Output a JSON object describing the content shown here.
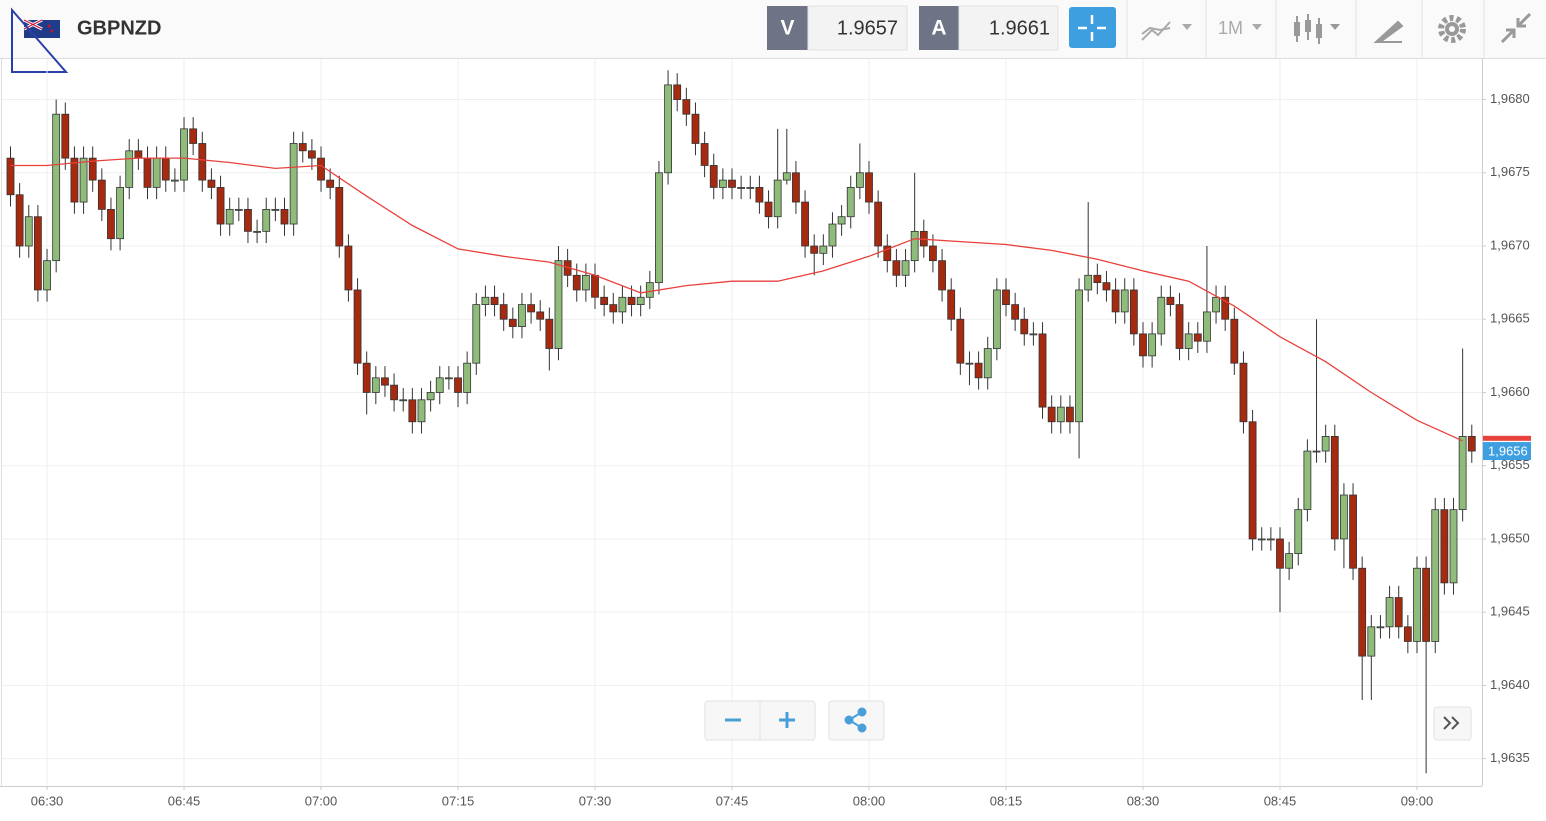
{
  "header": {
    "symbol": "GBPNZD",
    "bid_label": "V",
    "bid": "1.9657",
    "ask_label": "A",
    "ask": "1.9661",
    "timeframe": "1M"
  },
  "chart_data": {
    "type": "candlestick",
    "x": [
      "06:26",
      "06:27",
      "06:28",
      "06:29",
      "06:30",
      "06:31",
      "06:32",
      "06:33",
      "06:34",
      "06:35",
      "06:36",
      "06:37",
      "06:38",
      "06:39",
      "06:40",
      "06:41",
      "06:42",
      "06:43",
      "06:44",
      "06:45",
      "06:46",
      "06:47",
      "06:48",
      "06:49",
      "06:50",
      "06:51",
      "06:52",
      "06:53",
      "06:54",
      "06:55",
      "06:56",
      "06:57",
      "06:58",
      "06:59",
      "07:00",
      "07:01",
      "07:02",
      "07:03",
      "07:04",
      "07:05",
      "07:06",
      "07:07",
      "07:08",
      "07:09",
      "07:10",
      "07:11",
      "07:12",
      "07:13",
      "07:14",
      "07:15",
      "07:16",
      "07:17",
      "07:18",
      "07:19",
      "07:20",
      "07:21",
      "07:22",
      "07:23",
      "07:24",
      "07:25",
      "07:26",
      "07:27",
      "07:28",
      "07:29",
      "07:30",
      "07:31",
      "07:32",
      "07:33",
      "07:34",
      "07:35",
      "07:36",
      "07:37",
      "07:38",
      "07:39",
      "07:40",
      "07:41",
      "07:42",
      "07:43",
      "07:44",
      "07:45",
      "07:46",
      "07:47",
      "07:48",
      "07:49",
      "07:50",
      "07:51",
      "07:52",
      "07:53",
      "07:54",
      "07:55",
      "07:56",
      "07:57",
      "07:58",
      "07:59",
      "08:00",
      "08:01",
      "08:02",
      "08:03",
      "08:04",
      "08:05",
      "08:06",
      "08:07",
      "08:08",
      "08:09",
      "08:10",
      "08:11",
      "08:12",
      "08:13",
      "08:14",
      "08:15",
      "08:16",
      "08:17",
      "08:18",
      "08:19",
      "08:20",
      "08:21",
      "08:22",
      "08:23",
      "08:24",
      "08:25",
      "08:26",
      "08:27",
      "08:28",
      "08:29",
      "08:30",
      "08:31",
      "08:32",
      "08:33",
      "08:34",
      "08:35",
      "08:36",
      "08:37",
      "08:38",
      "08:39",
      "08:40",
      "08:41",
      "08:42",
      "08:43",
      "08:44",
      "08:45",
      "08:46",
      "08:47",
      "08:48",
      "08:49",
      "08:50",
      "08:51",
      "08:52",
      "08:53",
      "08:54",
      "08:55",
      "08:56",
      "08:57",
      "08:58",
      "08:59",
      "09:00",
      "09:01",
      "09:02",
      "09:03",
      "09:04",
      "09:05",
      "09:06"
    ],
    "open": [
      1.9676,
      1.96735,
      1.967,
      1.9672,
      1.9667,
      1.9669,
      1.9679,
      1.9676,
      1.9673,
      1.9676,
      1.96745,
      1.96725,
      1.96705,
      1.9674,
      1.96765,
      1.9676,
      1.9674,
      1.9676,
      1.96745,
      1.96745,
      1.9678,
      1.9677,
      1.96745,
      1.9674,
      1.96715,
      1.96725,
      1.96725,
      1.9671,
      1.9671,
      1.96725,
      1.96725,
      1.96715,
      1.9677,
      1.96765,
      1.9676,
      1.96745,
      1.9674,
      1.967,
      1.9667,
      1.9662,
      1.966,
      1.9661,
      1.96605,
      1.96595,
      1.96595,
      1.9658,
      1.96595,
      1.966,
      1.9661,
      1.9661,
      1.966,
      1.9662,
      1.9666,
      1.96665,
      1.9666,
      1.9665,
      1.96645,
      1.9666,
      1.96655,
      1.9665,
      1.9663,
      1.9669,
      1.9668,
      1.9667,
      1.9668,
      1.96665,
      1.9666,
      1.96655,
      1.96665,
      1.9666,
      1.96665,
      1.96675,
      1.9675,
      1.9681,
      1.968,
      1.9679,
      1.9677,
      1.96755,
      1.9674,
      1.96745,
      1.9674,
      1.9674,
      1.9674,
      1.9673,
      1.9672,
      1.96745,
      1.9675,
      1.9673,
      1.967,
      1.96695,
      1.967,
      1.96715,
      1.9672,
      1.9674,
      1.9675,
      1.9673,
      1.967,
      1.9669,
      1.9668,
      1.9669,
      1.9671,
      1.967,
      1.9669,
      1.9667,
      1.9665,
      1.9662,
      1.9662,
      1.9661,
      1.9663,
      1.9667,
      1.9666,
      1.9665,
      1.9664,
      1.9664,
      1.9659,
      1.9658,
      1.9659,
      1.9658,
      1.9667,
      1.9668,
      1.96675,
      1.9667,
      1.96655,
      1.9667,
      1.9664,
      1.96625,
      1.9664,
      1.96665,
      1.9666,
      1.9663,
      1.9664,
      1.96635,
      1.96655,
      1.96665,
      1.9665,
      1.9662,
      1.9658,
      1.965,
      1.965,
      1.965,
      1.9648,
      1.9649,
      1.9652,
      1.9656,
      1.9656,
      1.9657,
      1.965,
      1.9653,
      1.9648,
      1.9642,
      1.9644,
      1.9644,
      1.9646,
      1.9644,
      1.9643,
      1.9648,
      1.9643,
      1.9652,
      1.9647,
      1.9652,
      1.9657
    ],
    "high": [
      1.96768,
      1.96743,
      1.96728,
      1.96728,
      1.96698,
      1.968,
      1.96798,
      1.96768,
      1.96768,
      1.96768,
      1.96753,
      1.96733,
      1.96748,
      1.96773,
      1.96773,
      1.96768,
      1.96768,
      1.96768,
      1.96753,
      1.96788,
      1.96788,
      1.96778,
      1.96753,
      1.96748,
      1.96733,
      1.96733,
      1.96733,
      1.96718,
      1.96733,
      1.96733,
      1.96733,
      1.96778,
      1.96778,
      1.96773,
      1.96768,
      1.96753,
      1.96748,
      1.96708,
      1.96678,
      1.96628,
      1.96618,
      1.96618,
      1.96613,
      1.96603,
      1.96603,
      1.96603,
      1.96608,
      1.96618,
      1.96618,
      1.96618,
      1.96628,
      1.96668,
      1.96673,
      1.96673,
      1.96668,
      1.96658,
      1.96668,
      1.96668,
      1.96663,
      1.96658,
      1.967,
      1.96698,
      1.96688,
      1.96688,
      1.96688,
      1.96673,
      1.96668,
      1.96673,
      1.96673,
      1.96673,
      1.96683,
      1.96758,
      1.9682,
      1.96818,
      1.96808,
      1.96798,
      1.96778,
      1.96763,
      1.96753,
      1.96753,
      1.96748,
      1.96748,
      1.96748,
      1.96738,
      1.9678,
      1.9678,
      1.96758,
      1.96738,
      1.96708,
      1.96708,
      1.96723,
      1.96728,
      1.96748,
      1.9677,
      1.96758,
      1.96738,
      1.96708,
      1.96698,
      1.96698,
      1.9675,
      1.96718,
      1.96708,
      1.96698,
      1.96678,
      1.96658,
      1.96628,
      1.96628,
      1.96638,
      1.96678,
      1.96678,
      1.96668,
      1.96658,
      1.96648,
      1.96648,
      1.96598,
      1.96598,
      1.96598,
      1.96678,
      1.9673,
      1.96688,
      1.96683,
      1.96678,
      1.96678,
      1.96678,
      1.96648,
      1.96648,
      1.96673,
      1.96673,
      1.96668,
      1.96648,
      1.96648,
      1.967,
      1.96673,
      1.96673,
      1.96658,
      1.96628,
      1.96588,
      1.96508,
      1.96508,
      1.96508,
      1.96498,
      1.96528,
      1.96568,
      1.9665,
      1.96578,
      1.96578,
      1.96538,
      1.96538,
      1.96488,
      1.96448,
      1.96448,
      1.96468,
      1.96468,
      1.96448,
      1.96488,
      1.96488,
      1.96528,
      1.96528,
      1.96528,
      1.9663,
      1.96578
    ],
    "low": [
      1.96727,
      1.96692,
      1.96692,
      1.96662,
      1.96662,
      1.96682,
      1.96752,
      1.96722,
      1.96722,
      1.96737,
      1.96717,
      1.96697,
      1.96697,
      1.96732,
      1.96752,
      1.96732,
      1.96732,
      1.96737,
      1.96737,
      1.96737,
      1.96762,
      1.96737,
      1.96732,
      1.96707,
      1.96707,
      1.96717,
      1.96702,
      1.96702,
      1.96702,
      1.96717,
      1.96707,
      1.96707,
      1.96757,
      1.96752,
      1.96737,
      1.96732,
      1.96692,
      1.96662,
      1.96612,
      1.96585,
      1.96592,
      1.96597,
      1.96587,
      1.96587,
      1.96572,
      1.96572,
      1.96587,
      1.96592,
      1.96602,
      1.9659,
      1.96592,
      1.96612,
      1.96652,
      1.96652,
      1.96642,
      1.96637,
      1.96637,
      1.96647,
      1.96642,
      1.96615,
      1.96622,
      1.96672,
      1.96662,
      1.96662,
      1.96657,
      1.96652,
      1.96647,
      1.96647,
      1.96652,
      1.96652,
      1.96657,
      1.96667,
      1.96742,
      1.96792,
      1.96782,
      1.96762,
      1.96747,
      1.96732,
      1.96732,
      1.96732,
      1.96732,
      1.96732,
      1.96722,
      1.96712,
      1.96712,
      1.96742,
      1.96722,
      1.96692,
      1.9668,
      1.96687,
      1.96692,
      1.96707,
      1.96712,
      1.96732,
      1.96722,
      1.96692,
      1.96682,
      1.96672,
      1.96672,
      1.96682,
      1.96692,
      1.96682,
      1.96662,
      1.96642,
      1.96612,
      1.96605,
      1.96602,
      1.96602,
      1.96622,
      1.96652,
      1.96642,
      1.96632,
      1.96632,
      1.96582,
      1.96572,
      1.96572,
      1.96572,
      1.96555,
      1.96662,
      1.96667,
      1.96662,
      1.96647,
      1.96647,
      1.96632,
      1.96617,
      1.96617,
      1.96632,
      1.96652,
      1.96622,
      1.96622,
      1.96627,
      1.96627,
      1.96647,
      1.96642,
      1.96612,
      1.96572,
      1.96492,
      1.96492,
      1.96492,
      1.9645,
      1.96472,
      1.96482,
      1.96512,
      1.96552,
      1.96552,
      1.96492,
      1.9648,
      1.96472,
      1.9639,
      1.9639,
      1.96432,
      1.96432,
      1.96432,
      1.96422,
      1.96422,
      1.9634,
      1.96422,
      1.96462,
      1.96462,
      1.96512,
      1.96552
    ],
    "close": [
      1.96735,
      1.967,
      1.9672,
      1.9667,
      1.9669,
      1.9679,
      1.9676,
      1.9673,
      1.9676,
      1.96745,
      1.96725,
      1.96705,
      1.9674,
      1.96765,
      1.9676,
      1.9674,
      1.9676,
      1.96745,
      1.96745,
      1.9678,
      1.9677,
      1.96745,
      1.9674,
      1.96715,
      1.96725,
      1.96725,
      1.9671,
      1.9671,
      1.96725,
      1.96725,
      1.96715,
      1.9677,
      1.96765,
      1.9676,
      1.96745,
      1.9674,
      1.967,
      1.9667,
      1.9662,
      1.966,
      1.9661,
      1.96605,
      1.96595,
      1.96595,
      1.9658,
      1.96595,
      1.966,
      1.9661,
      1.9661,
      1.966,
      1.9662,
      1.9666,
      1.96665,
      1.9666,
      1.9665,
      1.96645,
      1.9666,
      1.96655,
      1.9665,
      1.9663,
      1.9669,
      1.9668,
      1.9667,
      1.9668,
      1.96665,
      1.9666,
      1.96655,
      1.96665,
      1.9666,
      1.96665,
      1.96675,
      1.9675,
      1.9681,
      1.968,
      1.9679,
      1.9677,
      1.96755,
      1.9674,
      1.96745,
      1.9674,
      1.9674,
      1.9674,
      1.9673,
      1.9672,
      1.96745,
      1.9675,
      1.9673,
      1.967,
      1.96695,
      1.967,
      1.96715,
      1.9672,
      1.9674,
      1.9675,
      1.9673,
      1.967,
      1.9669,
      1.9668,
      1.9669,
      1.9671,
      1.967,
      1.9669,
      1.9667,
      1.9665,
      1.9662,
      1.9662,
      1.9661,
      1.9663,
      1.9667,
      1.9666,
      1.9665,
      1.9664,
      1.9664,
      1.9659,
      1.9658,
      1.9659,
      1.9658,
      1.9667,
      1.9668,
      1.96675,
      1.9667,
      1.96655,
      1.9667,
      1.9664,
      1.96625,
      1.9664,
      1.96665,
      1.9666,
      1.9663,
      1.9664,
      1.96635,
      1.96655,
      1.96665,
      1.9665,
      1.9662,
      1.9658,
      1.965,
      1.965,
      1.965,
      1.9648,
      1.9649,
      1.9652,
      1.9656,
      1.9656,
      1.9657,
      1.965,
      1.9653,
      1.9648,
      1.9642,
      1.9644,
      1.9644,
      1.9646,
      1.9644,
      1.9643,
      1.9648,
      1.9643,
      1.9652,
      1.9647,
      1.9652,
      1.9657,
      1.9656
    ],
    "up_color": "#8fbc7b",
    "down_color": "#a52a10",
    "moving_average": {
      "color": "#e8413c",
      "x": [
        "06:26",
        "06:30",
        "06:35",
        "06:40",
        "06:45",
        "06:50",
        "06:55",
        "07:00",
        "07:05",
        "07:10",
        "07:15",
        "07:20",
        "07:25",
        "07:30",
        "07:35",
        "07:40",
        "07:45",
        "07:50",
        "07:55",
        "08:00",
        "08:05",
        "08:10",
        "08:15",
        "08:20",
        "08:25",
        "08:30",
        "08:35",
        "08:40",
        "08:45",
        "08:50",
        "08:55",
        "09:00",
        "09:05"
      ],
      "values": [
        1.96755,
        1.96755,
        1.96758,
        1.9676,
        1.9676,
        1.96757,
        1.96753,
        1.96755,
        1.96734,
        1.96714,
        1.96698,
        1.96693,
        1.96689,
        1.9668,
        1.96668,
        1.96673,
        1.96676,
        1.96676,
        1.96683,
        1.96693,
        1.96705,
        1.96703,
        1.96701,
        1.96697,
        1.96691,
        1.96683,
        1.96676,
        1.96659,
        1.96638,
        1.96621,
        1.966,
        1.96581,
        1.96567
      ]
    },
    "last_price": {
      "value": 1.9656,
      "label": "1,9656"
    },
    "ylim": [
      1.96332,
      1.96827
    ],
    "yticks": [
      {
        "value": 1.9635,
        "label": "1,9635"
      },
      {
        "value": 1.964,
        "label": "1,9640"
      },
      {
        "value": 1.9645,
        "label": "1,9645"
      },
      {
        "value": 1.965,
        "label": "1,9650"
      },
      {
        "value": 1.9655,
        "label": "1,9655"
      },
      {
        "value": 1.966,
        "label": "1,9660"
      },
      {
        "value": 1.9665,
        "label": "1,9665"
      },
      {
        "value": 1.967,
        "label": "1,9670"
      },
      {
        "value": 1.9675,
        "label": "1,9675"
      },
      {
        "value": 1.968,
        "label": "1,9680"
      }
    ],
    "xticks": [
      "06:30",
      "06:45",
      "07:00",
      "07:15",
      "07:30",
      "07:45",
      "08:00",
      "08:15",
      "08:30",
      "08:45",
      "09:00"
    ],
    "grid": true
  }
}
